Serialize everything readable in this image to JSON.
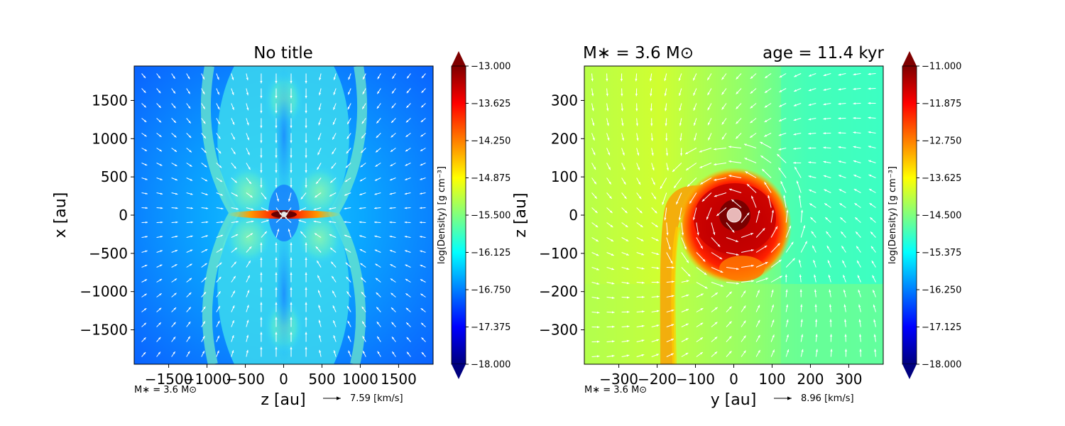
{
  "figure": {
    "left_title": "No title",
    "right_title_left": "M∗ = 3.6 M⊙",
    "right_title_right": "age = 11.4 kyr",
    "left_footnote": "M∗ = 3.6 M⊙",
    "right_footnote": "M∗ = 3.6 M⊙",
    "left_velocity_key": "7.59 [km/s]",
    "right_velocity_key": "8.96 [km/s]"
  },
  "colormap": {
    "name": "jet",
    "stops": [
      "#00007f",
      "#0000ff",
      "#007fff",
      "#00ffff",
      "#7fff7f",
      "#ffff00",
      "#ff7f00",
      "#ff0000",
      "#7f0000"
    ],
    "arrow_color": "#ffffff"
  },
  "chart_data": [
    {
      "type": "heatmap",
      "title": "No title",
      "xlabel": "z [au]",
      "ylabel": "x [au]",
      "xlim": [
        -1950,
        1950
      ],
      "ylim": [
        -1950,
        1950
      ],
      "x_ticks": [
        -1500,
        -1000,
        -500,
        0,
        500,
        1000,
        1500
      ],
      "y_ticks": [
        1500,
        1000,
        500,
        0,
        -500,
        -1000,
        -1500
      ],
      "x_tick_labels": [
        "−1500",
        "−1000",
        "−500",
        "0",
        "500",
        "1000",
        "1500"
      ],
      "y_tick_labels": [
        "1500",
        "1000",
        "500",
        "0",
        "−500",
        "−1000",
        "−1500"
      ],
      "colorbar": {
        "label": "log(Density) [g cm⁻³]",
        "range": [
          -18.0,
          -13.0
        ],
        "extend": "both",
        "ticks": [
          -13.0,
          -13.625,
          -14.25,
          -14.875,
          -15.5,
          -16.125,
          -16.75,
          -17.375,
          -18.0
        ],
        "tick_labels": [
          "−13.000",
          "−13.625",
          "−14.250",
          "−14.875",
          "−15.500",
          "−16.125",
          "−16.750",
          "−17.375",
          "−18.000"
        ]
      },
      "velocity_key": {
        "value": 7.59,
        "unit": "km/s"
      },
      "features": {
        "background_level": -16.9,
        "outflow_cavity_level": -15.6,
        "disk_level": -13.2,
        "disk_extent_au": 650,
        "sink_at": [
          0,
          0
        ]
      }
    },
    {
      "type": "heatmap",
      "title": "",
      "xlabel": "y [au]",
      "ylabel": "z [au]",
      "xlim": [
        -390,
        390
      ],
      "ylim": [
        -390,
        390
      ],
      "x_ticks": [
        -300,
        -200,
        -100,
        0,
        100,
        200,
        300
      ],
      "y_ticks": [
        300,
        200,
        100,
        0,
        -100,
        -200,
        -300
      ],
      "x_tick_labels": [
        "−300",
        "−200",
        "−100",
        "0",
        "100",
        "200",
        "300"
      ],
      "y_tick_labels": [
        "300",
        "200",
        "100",
        "0",
        "−100",
        "−200",
        "−300"
      ],
      "colorbar": {
        "label": "log(Density) [g cm⁻³]",
        "range": [
          -18.0,
          -11.0
        ],
        "extend": "both",
        "ticks": [
          -11.0,
          -11.875,
          -12.75,
          -13.625,
          -14.5,
          -15.375,
          -16.25,
          -17.125,
          -18.0
        ],
        "tick_labels": [
          "−11.000",
          "−11.875",
          "−12.750",
          "−13.625",
          "−14.500",
          "−15.375",
          "−16.250",
          "−17.125",
          "−18.000"
        ]
      },
      "velocity_key": {
        "value": 8.96,
        "unit": "km/s"
      },
      "features": {
        "background_level": -14.4,
        "core_level": -11.3,
        "core_radius_au": 70,
        "sink_at": [
          0,
          0
        ]
      }
    }
  ]
}
